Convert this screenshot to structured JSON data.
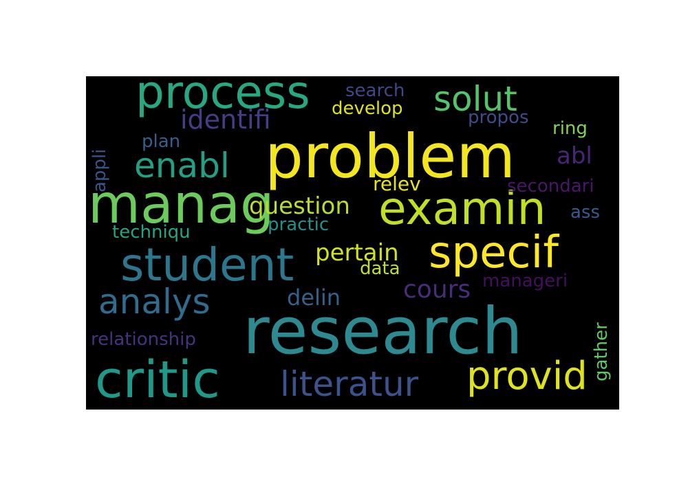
{
  "words": [
    {
      "key": "research",
      "text": "research",
      "color": "#2c8a90"
    },
    {
      "key": "problem",
      "text": "problem",
      "color": "#f4e61e"
    },
    {
      "key": "manag",
      "text": "manag",
      "color": "#6ccc5b"
    },
    {
      "key": "process",
      "text": "process",
      "color": "#26a883"
    },
    {
      "key": "examin",
      "text": "examin",
      "color": "#c2df23"
    },
    {
      "key": "critic",
      "text": "critic",
      "color": "#1f9a8a"
    },
    {
      "key": "student",
      "text": "student",
      "color": "#2b788e"
    },
    {
      "key": "specif",
      "text": "specif",
      "color": "#fde725"
    },
    {
      "key": "provid",
      "text": "provid",
      "color": "#dfe318"
    },
    {
      "key": "analys",
      "text": "analys",
      "color": "#2f6c8e"
    },
    {
      "key": "enabl",
      "text": "enabl",
      "color": "#23a083"
    },
    {
      "key": "solut",
      "text": "solut",
      "color": "#52c569"
    },
    {
      "key": "literatur",
      "text": "literatur",
      "color": "#3b528b"
    },
    {
      "key": "identifi",
      "text": "identifi",
      "color": "#433e85"
    },
    {
      "key": "question",
      "text": "question",
      "color": "#b8de29"
    },
    {
      "key": "pertain",
      "text": "pertain",
      "color": "#d2e21b"
    },
    {
      "key": "delin",
      "text": "delin",
      "color": "#33638d"
    },
    {
      "key": "cours",
      "text": "cours",
      "color": "#472d7b"
    },
    {
      "key": "relev",
      "text": "relev",
      "color": "#e8e419"
    },
    {
      "key": "abl",
      "text": "abl",
      "color": "#482576"
    },
    {
      "key": "search",
      "text": "search",
      "color": "#3e4989"
    },
    {
      "key": "develop",
      "text": "develop",
      "color": "#dde318"
    },
    {
      "key": "propos",
      "text": "propos",
      "color": "#3e4c8a"
    },
    {
      "key": "ring",
      "text": "ring",
      "color": "#84d44b"
    },
    {
      "key": "plan",
      "text": "plan",
      "color": "#355f8d"
    },
    {
      "key": "appli",
      "text": "appli",
      "color": "#39568c"
    },
    {
      "key": "secondari",
      "text": "secondari",
      "color": "#481769"
    },
    {
      "key": "practic",
      "text": "practic",
      "color": "#20928c"
    },
    {
      "key": "techniqu",
      "text": "techniqu",
      "color": "#22a785"
    },
    {
      "key": "ass",
      "text": "ass",
      "color": "#365c8d"
    },
    {
      "key": "data",
      "text": "data",
      "color": "#c0df25"
    },
    {
      "key": "manageri",
      "text": "manageri",
      "color": "#440f5f"
    },
    {
      "key": "gather",
      "text": "gather",
      "color": "#5ec962"
    },
    {
      "key": "relationship",
      "text": "relationship",
      "color": "#46337f"
    }
  ]
}
